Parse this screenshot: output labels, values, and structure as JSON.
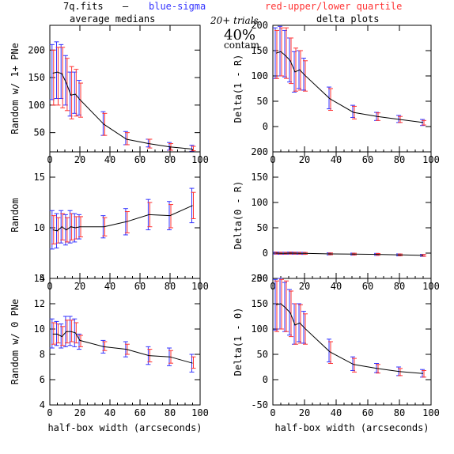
{
  "header": {
    "file": "7q.fits",
    "dash": "—",
    "blue_note": "blue-sigma",
    "red_note": "red-upper/lower quartile",
    "left_title": "average medians",
    "right_title": "delta plots",
    "trials": "20+ trials",
    "pct": "40%",
    "contam": "contam",
    "blue_color": "#3333ff",
    "red_color": "#ff3333"
  },
  "chart_data": [
    {
      "type": "line",
      "ylabel": "Random w/ 1+ PNe",
      "xlabel": "",
      "xlim": [
        0,
        100
      ],
      "ylim": [
        15,
        245
      ],
      "xticks": [
        0,
        20,
        40,
        60,
        80,
        100
      ],
      "yticks": [
        50,
        100,
        150,
        200
      ],
      "x": [
        2,
        5,
        8,
        11,
        14,
        17,
        20,
        36,
        51,
        66,
        80,
        95
      ],
      "y": [
        158,
        160,
        157,
        140,
        118,
        120,
        110,
        65,
        38,
        30,
        24,
        20
      ],
      "sigma_lo": [
        110,
        112,
        112,
        100,
        80,
        85,
        82,
        45,
        28,
        24,
        18,
        16
      ],
      "sigma_hi": [
        210,
        215,
        210,
        190,
        160,
        160,
        145,
        88,
        52,
        38,
        32,
        27
      ],
      "quart_lo": [
        100,
        100,
        95,
        90,
        75,
        80,
        78,
        45,
        28,
        22,
        18,
        17
      ],
      "quart_hi": [
        200,
        205,
        205,
        185,
        170,
        165,
        140,
        85,
        50,
        38,
        30,
        25
      ]
    },
    {
      "type": "line",
      "ylabel": "Delta(1 - R)",
      "xlabel": "",
      "xlim": [
        0,
        100
      ],
      "ylim": [
        -50,
        200
      ],
      "xticks": [
        0,
        20,
        40,
        60,
        80,
        100
      ],
      "yticks": [
        0,
        50,
        100,
        150,
        200
      ],
      "x": [
        2,
        5,
        8,
        11,
        14,
        17,
        20,
        36,
        51,
        66,
        80,
        95
      ],
      "y": [
        145,
        148,
        140,
        130,
        108,
        112,
        102,
        55,
        28,
        20,
        14,
        8
      ],
      "sigma_lo": [
        95,
        100,
        98,
        88,
        68,
        75,
        72,
        35,
        18,
        12,
        8,
        2
      ],
      "sigma_hi": [
        195,
        198,
        190,
        175,
        148,
        150,
        135,
        78,
        42,
        28,
        22,
        14
      ],
      "quart_lo": [
        95,
        100,
        95,
        85,
        70,
        72,
        70,
        32,
        15,
        12,
        8,
        3
      ],
      "quart_hi": [
        190,
        195,
        195,
        175,
        155,
        150,
        130,
        75,
        40,
        27,
        20,
        12
      ]
    },
    {
      "type": "line",
      "ylabel": "Random",
      "xlabel": "",
      "xlim": [
        0,
        100
      ],
      "ylim": [
        5,
        17.5
      ],
      "xticks": [
        0,
        20,
        40,
        60,
        80,
        100
      ],
      "yticks": [
        5,
        10,
        15
      ],
      "x": [
        2,
        5,
        8,
        11,
        14,
        17,
        20,
        36,
        51,
        66,
        80,
        95
      ],
      "y": [
        9.8,
        9.7,
        10.1,
        9.8,
        10.1,
        10.0,
        10.1,
        10.1,
        10.6,
        11.3,
        11.2,
        12.2
      ],
      "sigma_lo": [
        7.9,
        8.0,
        8.5,
        8.3,
        8.5,
        8.6,
        8.9,
        9.0,
        9.3,
        9.8,
        9.8,
        10.5
      ],
      "sigma_hi": [
        11.7,
        11.4,
        11.7,
        11.3,
        11.7,
        11.4,
        11.3,
        11.2,
        11.9,
        12.8,
        12.6,
        13.9
      ],
      "quart_lo": [
        8.4,
        8.5,
        8.8,
        8.6,
        8.8,
        8.9,
        9.1,
        9.2,
        9.5,
        10.1,
        10.0,
        10.9
      ],
      "quart_hi": [
        11.2,
        11.0,
        11.4,
        11.0,
        11.4,
        11.1,
        11.1,
        11.0,
        11.6,
        12.5,
        12.3,
        13.5
      ]
    },
    {
      "type": "line",
      "ylabel": "Delta(0 - R)",
      "xlabel": "",
      "xlim": [
        0,
        100
      ],
      "ylim": [
        -50,
        200
      ],
      "xticks": [
        0,
        20,
        40,
        60,
        80,
        100
      ],
      "yticks": [
        -50,
        0,
        50,
        100,
        150,
        200
      ],
      "x": [
        2,
        5,
        8,
        11,
        14,
        17,
        20,
        36,
        51,
        66,
        80,
        95
      ],
      "y": [
        0,
        -0.3,
        -0.3,
        0,
        -0.2,
        -0.3,
        -0.5,
        -1.5,
        -2,
        -2.5,
        -3.5,
        -4.5
      ],
      "sigma_lo": [
        -2,
        -2.3,
        -2.3,
        -2,
        -2.2,
        -2.3,
        -2.5,
        -3.5,
        -4,
        -4.5,
        -5.5,
        -6.5
      ],
      "sigma_hi": [
        2,
        1.7,
        1.7,
        2,
        1.8,
        1.7,
        1.5,
        0.5,
        0,
        -0.5,
        -1.5,
        -2.5
      ],
      "quart_lo": [
        -1.8,
        -2,
        -2,
        -1.8,
        -2,
        -2,
        -2.3,
        -3.2,
        -3.7,
        -4.2,
        -5.2,
        -6.2
      ],
      "quart_hi": [
        1.8,
        1.5,
        1.5,
        1.8,
        1.6,
        1.5,
        1.3,
        0.3,
        -0.2,
        -0.7,
        -1.7,
        -2.7
      ]
    },
    {
      "type": "line",
      "ylabel": "Random w/ 0 PNe",
      "xlabel": "half-box width (arcseconds)",
      "xlim": [
        0,
        100
      ],
      "ylim": [
        4,
        14
      ],
      "xticks": [
        0,
        20,
        40,
        60,
        80,
        100
      ],
      "yticks": [
        4,
        6,
        8,
        10,
        12,
        14
      ],
      "x": [
        2,
        5,
        8,
        11,
        14,
        17,
        20,
        36,
        51,
        66,
        80,
        95
      ],
      "y": [
        9.6,
        9.6,
        9.4,
        9.8,
        9.8,
        9.7,
        9.1,
        8.6,
        8.4,
        7.9,
        7.8,
        7.3
      ],
      "sigma_lo": [
        8.5,
        8.7,
        8.5,
        8.6,
        8.7,
        8.6,
        8.4,
        8.1,
        7.8,
        7.2,
        7.1,
        6.6
      ],
      "sigma_hi": [
        10.8,
        10.6,
        10.4,
        11.0,
        11.0,
        10.8,
        9.6,
        9.1,
        9.0,
        8.6,
        8.5,
        8.0
      ],
      "quart_lo": [
        8.8,
        8.9,
        8.7,
        8.9,
        9.0,
        8.9,
        8.6,
        8.3,
        8.0,
        7.4,
        7.3,
        6.9
      ],
      "quart_hi": [
        10.5,
        10.4,
        10.2,
        10.7,
        10.7,
        10.5,
        9.5,
        9.0,
        8.8,
        8.4,
        8.3,
        7.8
      ]
    },
    {
      "type": "line",
      "ylabel": "Delta(1 - 0)",
      "xlabel": "half-box width (arcseconds)",
      "xlim": [
        0,
        100
      ],
      "ylim": [
        -50,
        200
      ],
      "xticks": [
        0,
        20,
        40,
        60,
        80,
        100
      ],
      "yticks": [
        -50,
        0,
        50,
        100,
        150,
        200
      ],
      "x": [
        2,
        5,
        8,
        11,
        14,
        17,
        20,
        36,
        51,
        66,
        80,
        95
      ],
      "y": [
        148,
        150,
        142,
        132,
        108,
        112,
        102,
        55,
        30,
        22,
        16,
        12
      ],
      "sigma_lo": [
        98,
        100,
        95,
        88,
        70,
        75,
        72,
        35,
        18,
        14,
        8,
        5
      ],
      "sigma_hi": [
        198,
        200,
        192,
        178,
        150,
        150,
        135,
        80,
        45,
        32,
        25,
        20
      ],
      "quart_lo": [
        95,
        100,
        95,
        85,
        70,
        72,
        70,
        32,
        15,
        13,
        8,
        5
      ],
      "quart_hi": [
        195,
        198,
        195,
        175,
        150,
        148,
        130,
        75,
        42,
        30,
        22,
        18
      ]
    }
  ]
}
